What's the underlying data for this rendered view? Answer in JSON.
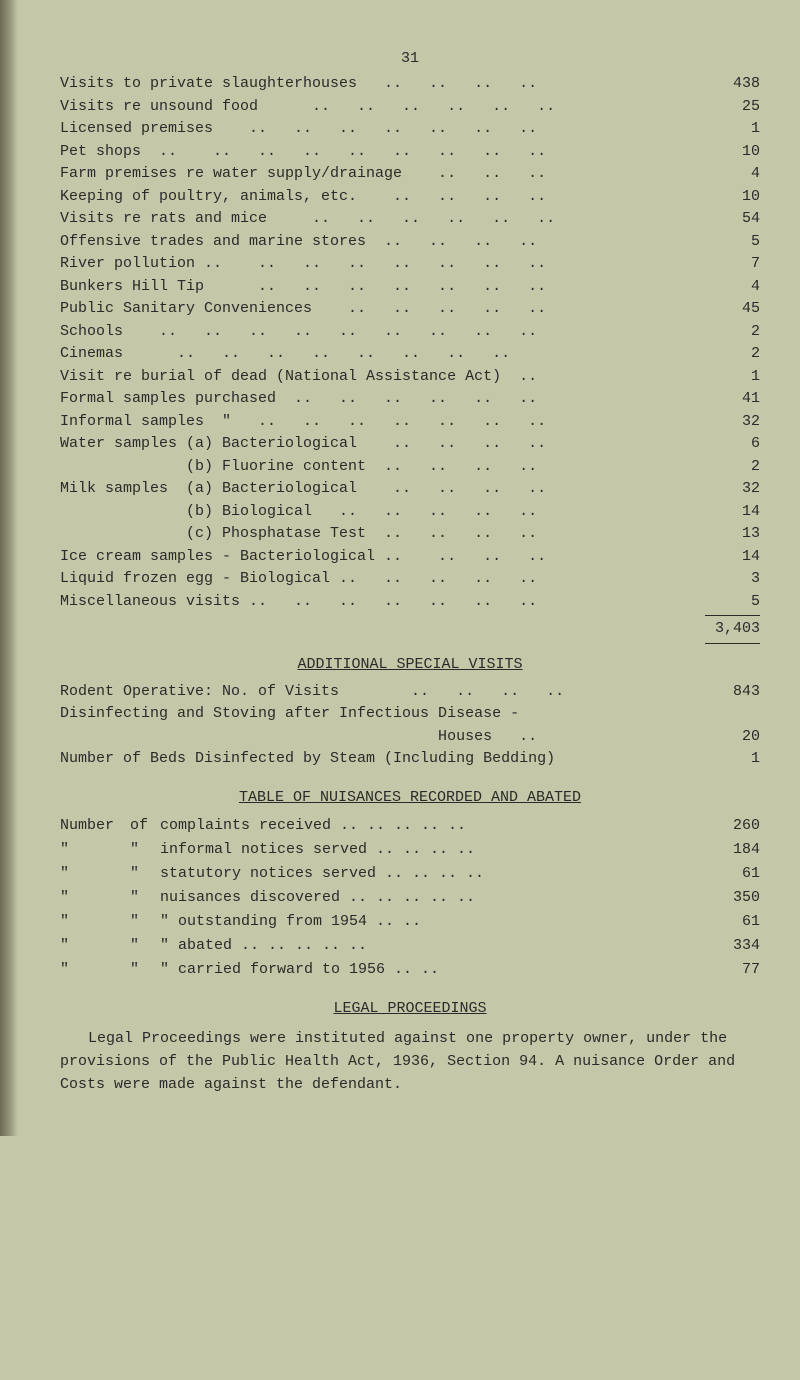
{
  "page_number": "31",
  "visits": [
    {
      "label": "Visits to private slaughterhouses   ..   ..   ..   ..",
      "value": "438"
    },
    {
      "label": "Visits re unsound food      ..   ..   ..   ..   ..   ..",
      "value": "25"
    },
    {
      "label": "Licensed premises    ..   ..   ..   ..   ..   ..   ..",
      "value": "1"
    },
    {
      "label": "Pet shops  ..    ..   ..   ..   ..   ..   ..   ..   ..",
      "value": "10"
    },
    {
      "label": "Farm premises re water supply/drainage    ..   ..   ..",
      "value": "4"
    },
    {
      "label": "Keeping of poultry, animals, etc.    ..   ..   ..   ..",
      "value": "10"
    },
    {
      "label": "Visits re rats and mice     ..   ..   ..   ..   ..   ..",
      "value": "54"
    },
    {
      "label": "Offensive trades and marine stores  ..   ..   ..   ..",
      "value": "5"
    },
    {
      "label": "River pollution ..    ..   ..   ..   ..   ..   ..   ..",
      "value": "7"
    },
    {
      "label": "Bunkers Hill Tip      ..   ..   ..   ..   ..   ..   ..",
      "value": "4"
    },
    {
      "label": "Public Sanitary Conveniences    ..   ..   ..   ..   ..",
      "value": "45"
    },
    {
      "label": "Schools    ..   ..   ..   ..   ..   ..   ..   ..   ..",
      "value": "2"
    },
    {
      "label": "Cinemas      ..   ..   ..   ..   ..   ..   ..   ..",
      "value": "2"
    },
    {
      "label": "Visit re burial of dead (National Assistance Act)  ..",
      "value": "1"
    },
    {
      "label": "Formal samples purchased  ..   ..   ..   ..   ..   ..",
      "value": "41"
    },
    {
      "label": "Informal samples  \"   ..   ..   ..   ..   ..   ..   ..",
      "value": "32"
    },
    {
      "label": "Water samples (a) Bacteriological    ..   ..   ..   ..",
      "value": "6"
    },
    {
      "label": "              (b) Fluorine content  ..   ..   ..   ..",
      "value": "2"
    },
    {
      "label": "Milk samples  (a) Bacteriological    ..   ..   ..   ..",
      "value": "32"
    },
    {
      "label": "              (b) Biological   ..   ..   ..   ..   ..",
      "value": "14"
    },
    {
      "label": "              (c) Phosphatase Test  ..   ..   ..   ..",
      "value": "13"
    },
    {
      "label": "Ice cream samples - Bacteriological ..    ..   ..   ..",
      "value": "14"
    },
    {
      "label": "Liquid frozen egg - Biological ..   ..   ..   ..   ..",
      "value": "3"
    },
    {
      "label": "Miscellaneous visits ..   ..   ..   ..   ..   ..   ..",
      "value": "5"
    }
  ],
  "visits_total": "3,403",
  "additional_title": "ADDITIONAL  SPECIAL  VISITS",
  "additional": [
    {
      "label": "Rodent Operative: No. of Visits        ..   ..   ..   ..",
      "value": "843"
    },
    {
      "label": "Disinfecting and Stoving after Infectious Disease -",
      "value": ""
    },
    {
      "label": "                                          Houses   ..",
      "value": "20"
    },
    {
      "label": "Number of Beds Disinfected by Steam (Including Bedding)",
      "value": "1"
    }
  ],
  "nuisances_title": "TABLE  OF  NUISANCES  RECORDED  AND  ABATED",
  "nuisances": [
    {
      "c1": "Number",
      "c2": "of",
      "c3": "complaints received  ..   ..   ..   ..   ..",
      "v": "260"
    },
    {
      "c1": "  \"",
      "c2": "\"",
      "c3": "informal notices served    ..   ..   ..   ..",
      "v": "184"
    },
    {
      "c1": "  \"",
      "c2": "\"",
      "c3": "statutory notices served  ..   ..   ..   ..",
      "v": "61"
    },
    {
      "c1": "  \"",
      "c2": "\"",
      "c3": "nuisances discovered ..   ..   ..   ..   ..",
      "v": "350"
    },
    {
      "c1": "  \"",
      "c2": "\"",
      "c3": "   \"     outstanding from 1954     ..   ..",
      "v": "61"
    },
    {
      "c1": "  \"",
      "c2": "\"",
      "c3": "   \"     abated       ..   ..   ..   ..   ..",
      "v": "334"
    },
    {
      "c1": "  \"",
      "c2": "\"",
      "c3": "   \"     carried forward to 1956   ..   ..",
      "v": "77"
    }
  ],
  "legal_title": "LEGAL  PROCEEDINGS",
  "legal_para": "Legal Proceedings were instituted against one property owner, under the provisions of the Public Health Act, 1936, Section 94. A nuisance Order and Costs were made against the defendant."
}
